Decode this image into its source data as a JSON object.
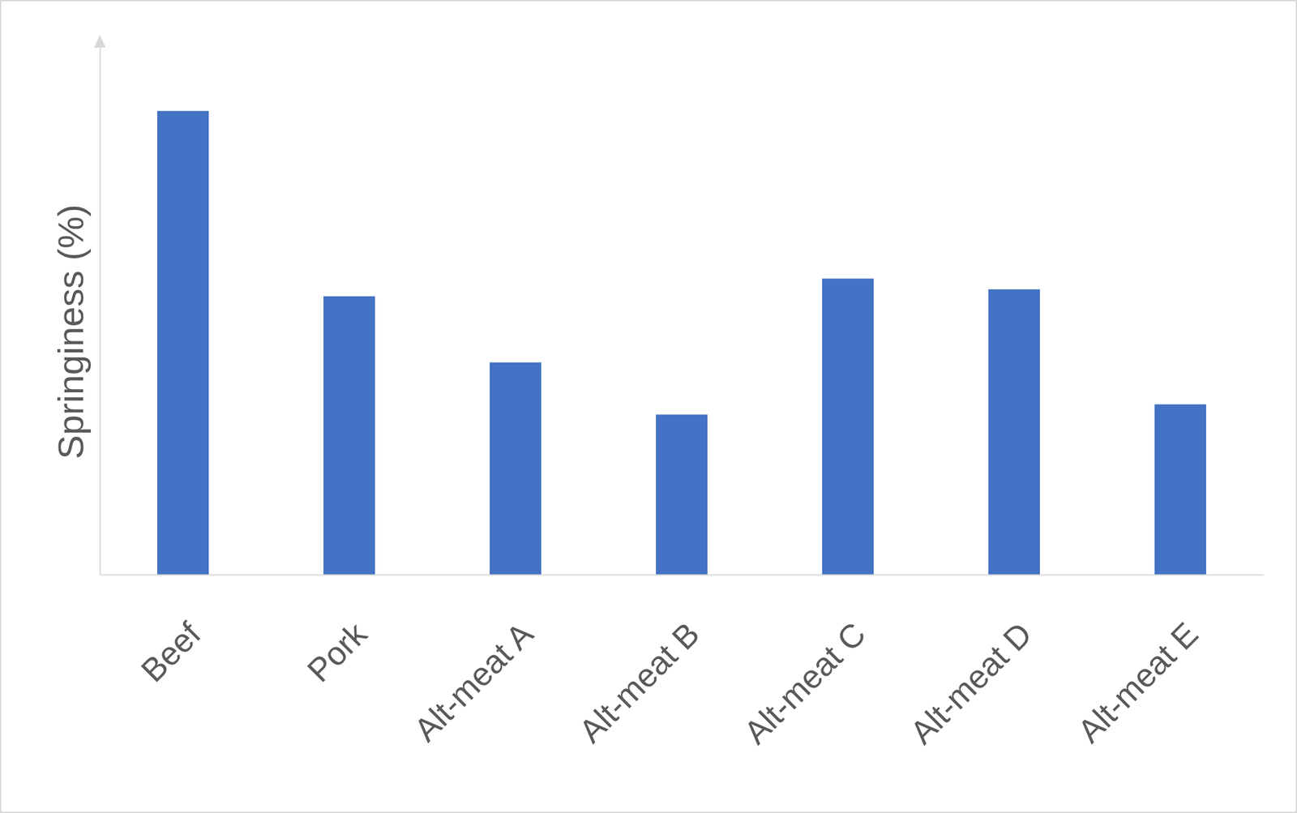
{
  "chart_data": {
    "type": "bar",
    "y_label": "Springiness (%)",
    "categories": [
      "Beef",
      "Pork",
      "Alt-meat A",
      "Alt-meat B",
      "Alt-meat C",
      "Alt-meat D",
      "Alt-meat E"
    ],
    "values": [
      86.3,
      51.8,
      39.5,
      29.8,
      55.1,
      53.1,
      31.7
    ],
    "color": "#4472c4",
    "ylim": [
      0,
      100
    ],
    "yticks": [],
    "grid": false,
    "tick_labels": false
  }
}
